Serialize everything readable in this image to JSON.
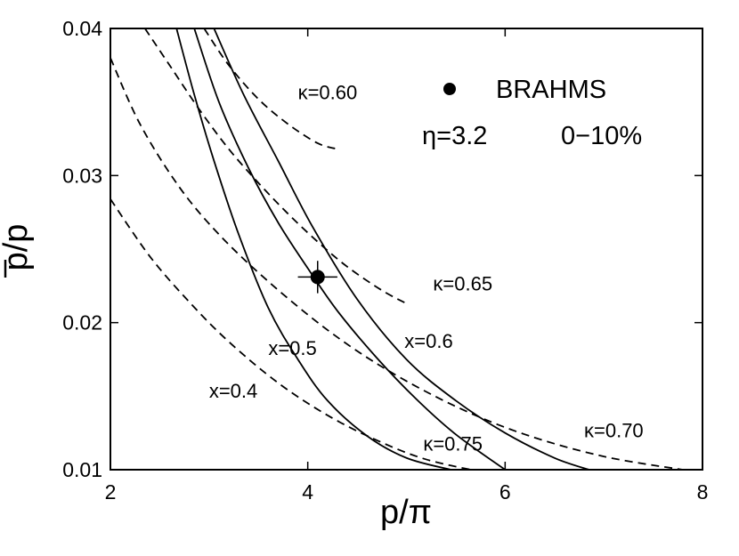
{
  "chart_data": {
    "type": "line",
    "xlabel": "p/π",
    "ylabel": "p/p",
    "xlim": [
      2,
      8
    ],
    "ylim": [
      0.01,
      0.04
    ],
    "xticks": [
      2,
      4,
      6,
      8
    ],
    "yticks": [
      0.01,
      0.02,
      0.03,
      0.04
    ],
    "xtick_labels": [
      "2",
      "4",
      "6",
      "8"
    ],
    "ytick_labels": [
      "0.01",
      "0.02",
      "0.03",
      "0.04"
    ],
    "grid": false,
    "legend": {
      "position": "top-right",
      "marker_label": "BRAHMS",
      "annotation_eta": "η=3.2",
      "annotation_centrality": "0−10%"
    },
    "series": [
      {
        "name": "x=0.4",
        "style": "solid",
        "label_at": [
          3.0,
          0.0149
        ],
        "x": [
          2.67,
          2.85,
          3.05,
          3.3,
          3.6,
          3.9,
          4.2,
          4.6,
          5.0,
          5.45
        ],
        "y": [
          0.04,
          0.0355,
          0.031,
          0.026,
          0.021,
          0.0175,
          0.0147,
          0.0123,
          0.0108,
          0.01
        ]
      },
      {
        "name": "x=0.5",
        "style": "solid",
        "label_at": [
          3.6,
          0.0178
        ],
        "x": [
          2.85,
          3.1,
          3.4,
          3.7,
          4.0,
          4.3,
          4.7,
          5.1,
          5.5,
          6.0
        ],
        "y": [
          0.04,
          0.035,
          0.0305,
          0.0268,
          0.0237,
          0.0208,
          0.0176,
          0.0148,
          0.0124,
          0.01
        ]
      },
      {
        "name": "x=0.6",
        "style": "solid",
        "label_at": [
          4.98,
          0.0183
        ],
        "x": [
          3.05,
          3.35,
          3.7,
          4.05,
          4.5,
          5.0,
          5.5,
          6.0,
          6.5,
          6.85
        ],
        "y": [
          0.04,
          0.0355,
          0.031,
          0.0265,
          0.0216,
          0.0175,
          0.0147,
          0.0125,
          0.0108,
          0.01
        ]
      },
      {
        "name": "κ=0.60",
        "style": "dashed",
        "label_at": [
          3.9,
          0.0352
        ],
        "x": [
          2.95,
          3.2,
          3.5,
          3.8,
          4.1,
          4.3
        ],
        "y": [
          0.04,
          0.0375,
          0.0352,
          0.0335,
          0.0322,
          0.0318
        ]
      },
      {
        "name": "κ=0.65",
        "style": "dashed",
        "label_at": [
          5.27,
          0.0222
        ],
        "x": [
          2.35,
          2.6,
          2.9,
          3.2,
          3.5,
          3.8,
          4.1,
          4.4,
          4.75,
          5.0
        ],
        "y": [
          0.04,
          0.0375,
          0.0345,
          0.0318,
          0.0295,
          0.0274,
          0.0255,
          0.0238,
          0.0222,
          0.0213
        ]
      },
      {
        "name": "κ=0.70",
        "style": "dashed",
        "label_at": [
          6.8,
          0.0122
        ],
        "x": [
          2.0,
          2.3,
          2.7,
          3.1,
          3.6,
          4.2,
          4.8,
          5.5,
          6.2,
          7.0,
          7.8
        ],
        "y": [
          0.038,
          0.0335,
          0.0292,
          0.026,
          0.0228,
          0.0195,
          0.0168,
          0.0143,
          0.0124,
          0.0109,
          0.01
        ]
      },
      {
        "name": "κ=0.75",
        "style": "dashed",
        "label_at": [
          5.17,
          0.0113
        ],
        "x": [
          2.0,
          2.4,
          2.8,
          3.2,
          3.7,
          4.2,
          4.7,
          5.2,
          5.8
        ],
        "y": [
          0.0284,
          0.0245,
          0.0214,
          0.0187,
          0.0159,
          0.0137,
          0.012,
          0.0107,
          0.0098
        ]
      }
    ],
    "data_points": [
      {
        "name": "BRAHMS",
        "x": 4.1,
        "y": 0.0231,
        "x_err": 0.2,
        "y_err": 0.0011
      }
    ]
  }
}
